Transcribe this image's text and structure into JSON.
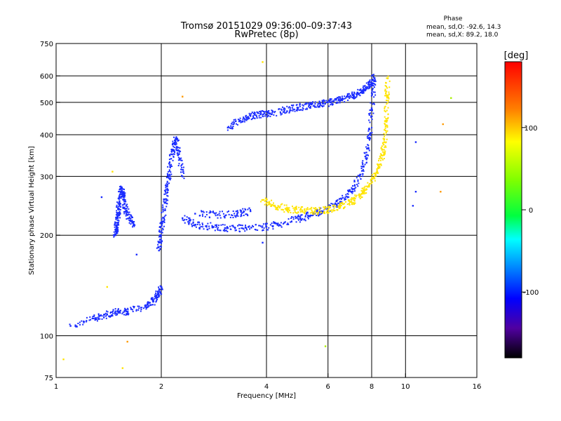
{
  "chart_data": {
    "type": "scatter",
    "title": "Tromsø 20151029 09:36:00–09:37:43",
    "subtitle": "RwPretec (8p)",
    "xlabel": "Frequency [MHz]",
    "ylabel": "Stationary phase Virtual Height [km]",
    "x_scale": "log",
    "y_scale": "log",
    "xlim": [
      1,
      16
    ],
    "ylim": [
      75,
      750
    ],
    "x_ticks": [
      1,
      2,
      4,
      6,
      8,
      10,
      16
    ],
    "y_ticks": [
      75,
      100,
      200,
      300,
      400,
      500,
      600,
      750
    ],
    "x_grid": [
      2,
      4,
      6,
      8,
      10
    ],
    "y_grid": [
      100,
      200,
      300,
      400,
      500,
      600
    ],
    "grid": true,
    "phase_header": {
      "title": "Phase",
      "line_o": "mean, sd,O: -92.6, 14.3",
      "line_x": "mean, sd,X:  89.2, 18.0"
    },
    "colorbar": {
      "label": "[deg]",
      "range": [
        -180,
        180
      ],
      "ticks": [
        100,
        0,
        -100
      ],
      "colormap": "rainbow"
    },
    "series": [
      {
        "x": [
          1.1,
          1.3,
          1.4,
          1.5,
          1.6,
          1.8,
          1.9,
          1.95,
          2.0
        ],
        "y": [
          107,
          113,
          116,
          118,
          118,
          122,
          127,
          133,
          140
        ],
        "phase": -100
      },
      {
        "x": [
          1.48,
          1.49,
          1.5,
          1.51,
          1.52,
          1.54,
          1.56,
          1.58,
          1.62,
          1.67
        ],
        "y": [
          200,
          210,
          225,
          240,
          260,
          275,
          260,
          240,
          225,
          215
        ],
        "phase": -100
      },
      {
        "x": [
          1.97,
          1.99,
          2.02,
          2.05,
          2.08,
          2.12,
          2.16,
          2.2,
          2.25,
          2.3
        ],
        "y": [
          180,
          200,
          220,
          250,
          280,
          320,
          360,
          390,
          350,
          300
        ],
        "phase": -100
      },
      {
        "x": [
          2.3,
          2.5,
          2.8,
          3.1,
          3.5,
          4.0,
          4.5,
          5.0,
          5.5,
          6.0,
          6.5,
          7.0,
          7.4,
          7.7,
          7.9,
          8.0,
          8.15
        ],
        "y": [
          225,
          215,
          212,
          210,
          210,
          212,
          218,
          225,
          232,
          240,
          252,
          270,
          300,
          340,
          400,
          480,
          590
        ],
        "phase": -100
      },
      {
        "x": [
          3.1,
          3.35,
          3.6,
          3.85,
          4.1,
          4.5,
          4.9,
          5.3,
          5.7,
          6.1,
          6.5,
          6.9,
          7.3,
          7.6,
          7.9,
          8.1
        ],
        "y": [
          420,
          440,
          455,
          460,
          463,
          472,
          482,
          490,
          495,
          500,
          508,
          520,
          530,
          545,
          565,
          595
        ],
        "phase": -100
      },
      {
        "x": [
          3.9,
          4.2,
          4.6,
          5.0,
          5.5,
          6.0,
          6.5,
          7.0,
          7.5,
          7.9,
          8.3,
          8.55,
          8.7,
          8.8,
          8.85,
          8.9
        ],
        "y": [
          255,
          245,
          240,
          238,
          236,
          238,
          244,
          252,
          266,
          285,
          310,
          340,
          380,
          440,
          520,
          590
        ],
        "phase": 95
      },
      {
        "x": [
          2.5,
          2.9,
          3.3,
          3.6
        ],
        "y": [
          232,
          230,
          232,
          236
        ],
        "phase": -110
      }
    ],
    "scatter_outliers": [
      {
        "x": 3.9,
        "y": 660,
        "phase": 100
      },
      {
        "x": 2.3,
        "y": 520,
        "phase": 130
      },
      {
        "x": 10.7,
        "y": 380,
        "phase": -100
      },
      {
        "x": 12.8,
        "y": 430,
        "phase": 140
      },
      {
        "x": 13.5,
        "y": 515,
        "phase": 30
      },
      {
        "x": 10.7,
        "y": 270,
        "phase": -100
      },
      {
        "x": 12.6,
        "y": 270,
        "phase": 160
      },
      {
        "x": 10.5,
        "y": 245,
        "phase": -100
      },
      {
        "x": 1.45,
        "y": 310,
        "phase": 120
      },
      {
        "x": 1.35,
        "y": 260,
        "phase": -100
      },
      {
        "x": 1.6,
        "y": 96,
        "phase": 140
      },
      {
        "x": 1.05,
        "y": 85,
        "phase": 120
      },
      {
        "x": 1.55,
        "y": 80,
        "phase": 120
      },
      {
        "x": 5.9,
        "y": 93,
        "phase": 30
      },
      {
        "x": 3.9,
        "y": 190,
        "phase": -100
      },
      {
        "x": 1.7,
        "y": 175,
        "phase": -100
      },
      {
        "x": 1.4,
        "y": 140,
        "phase": 120
      }
    ]
  }
}
